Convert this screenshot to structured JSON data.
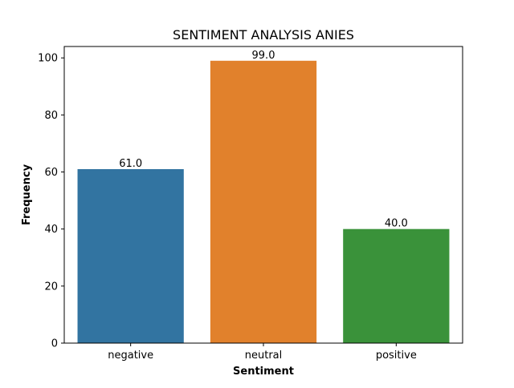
{
  "chart_data": {
    "type": "bar",
    "title": "SENTIMENT ANALYSIS ANIES",
    "xlabel": "Sentiment",
    "ylabel": "Frequency",
    "categories": [
      "negative",
      "neutral",
      "positive"
    ],
    "values": [
      61,
      99,
      40
    ],
    "data_labels": [
      "61.0",
      "99.0",
      "40.0"
    ],
    "colors": [
      "#3274a1",
      "#e1812c",
      "#3a923a"
    ],
    "ylim": [
      0,
      104
    ],
    "yticks": [
      0,
      20,
      40,
      60,
      80,
      100
    ],
    "ytick_labels": [
      "0",
      "20",
      "40",
      "60",
      "80",
      "100"
    ],
    "grid": false,
    "legend": "none"
  }
}
